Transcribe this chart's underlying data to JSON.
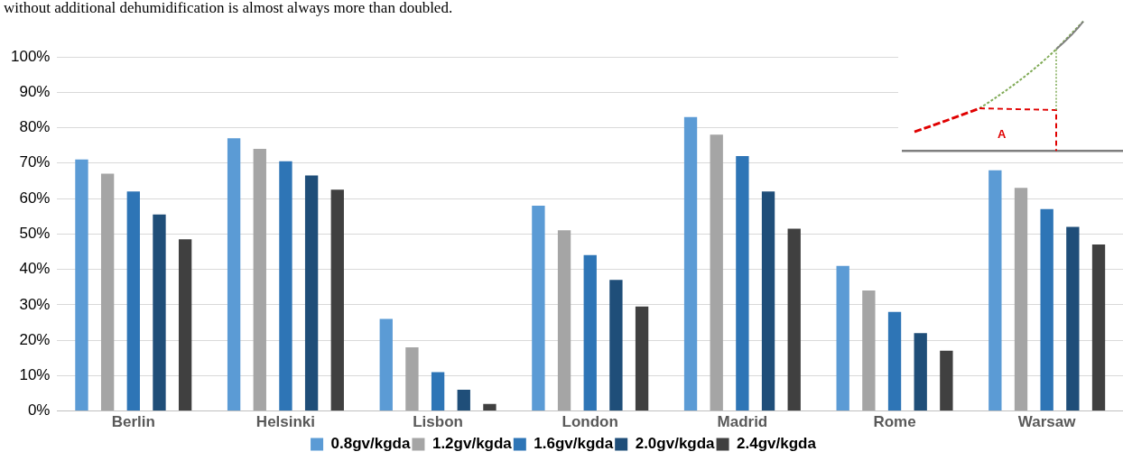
{
  "chart_data": {
    "type": "bar",
    "categories": [
      "Berlin",
      "Helsinki",
      "Lisbon",
      "London",
      "Madrid",
      "Rome",
      "Warsaw"
    ],
    "series": [
      {
        "name": "0.8gv/kgda",
        "color": "#5b9bd5",
        "values": [
          71,
          77,
          26,
          58,
          83,
          41,
          68
        ]
      },
      {
        "name": "1.2gv/kgda",
        "color": "#a5a5a5",
        "values": [
          67,
          74,
          18,
          51,
          78,
          34,
          63
        ]
      },
      {
        "name": "1.6gv/kgda",
        "color": "#2e75b6",
        "values": [
          62,
          70.5,
          11,
          44,
          72,
          28,
          57
        ]
      },
      {
        "name": "2.0gv/kgda",
        "color": "#1f4e79",
        "values": [
          55.5,
          66.5,
          6,
          37,
          62,
          22,
          52
        ]
      },
      {
        "name": "2.4gv/kgda",
        "color": "#404040",
        "values": [
          48.5,
          62.5,
          2,
          29.5,
          51.5,
          17,
          47
        ]
      }
    ],
    "ylim": [
      0,
      100
    ],
    "yticks": [
      {
        "value": 0,
        "label": "0%"
      },
      {
        "value": 10,
        "label": "10%"
      },
      {
        "value": 20,
        "label": "20%"
      },
      {
        "value": 30,
        "label": "30%"
      },
      {
        "value": 40,
        "label": "40%"
      },
      {
        "value": 50,
        "label": "50%"
      },
      {
        "value": 60,
        "label": "60%"
      },
      {
        "value": 70,
        "label": "70%"
      },
      {
        "value": 80,
        "label": "80%"
      },
      {
        "value": 90,
        "label": "90%"
      },
      {
        "value": 100,
        "label": "100%"
      }
    ],
    "grid": "y",
    "legend": "bottom",
    "annotations": [
      "without additional dehumidification is almost always more than doubled.",
      "A"
    ]
  }
}
